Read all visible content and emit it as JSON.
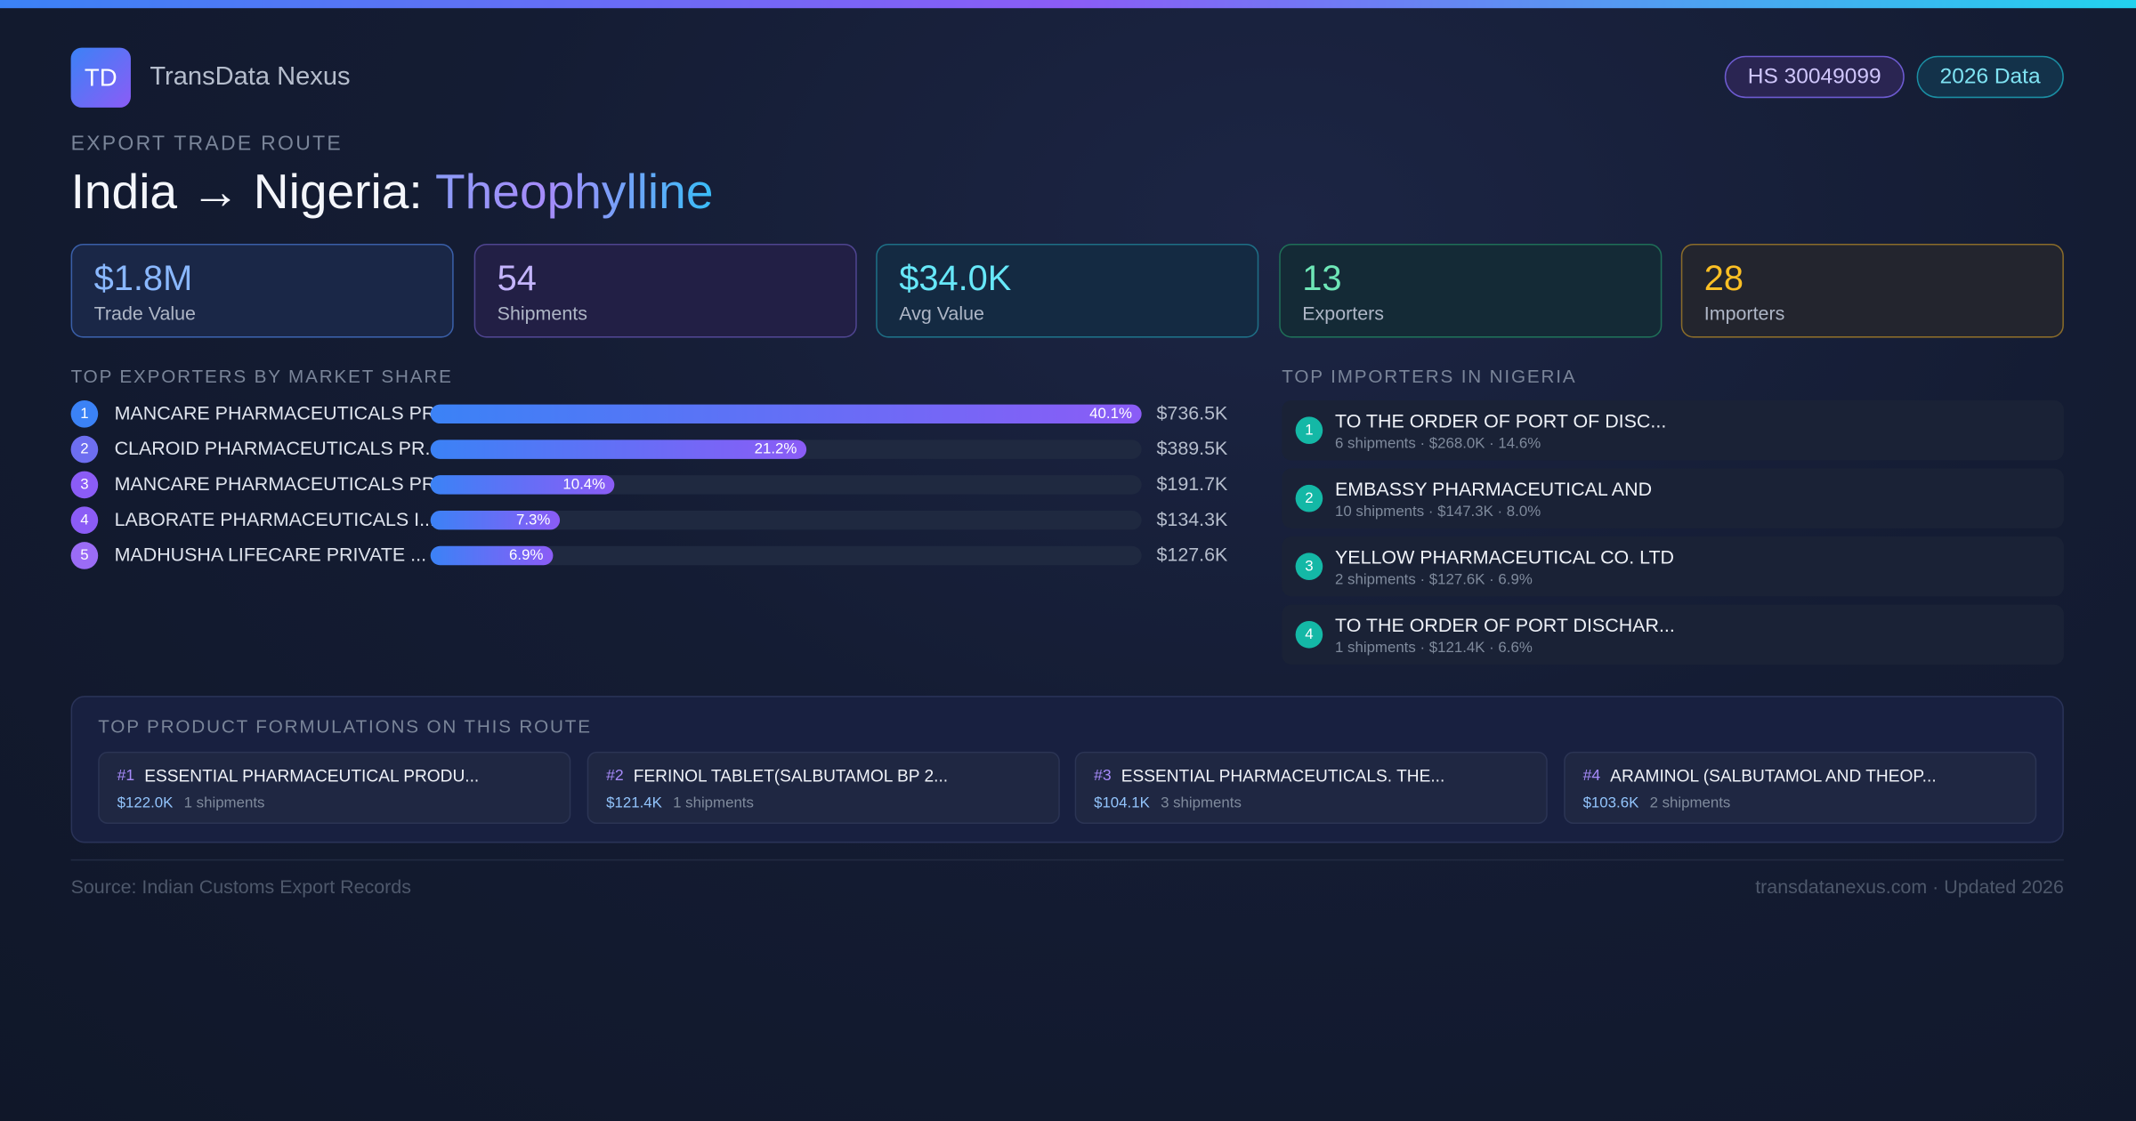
{
  "brand": {
    "logo": "TD",
    "name": "TransData Nexus"
  },
  "badges": [
    "HS 30049099",
    "2026 Data"
  ],
  "eyebrow": "EXPORT TRADE ROUTE",
  "title": {
    "route": "India → Nigeria:",
    "product": "Theophylline"
  },
  "stats": [
    {
      "value": "$1.8M",
      "label": "Trade Value"
    },
    {
      "value": "54",
      "label": "Shipments"
    },
    {
      "value": "$34.0K",
      "label": "Avg Value"
    },
    {
      "value": "13",
      "label": "Exporters"
    },
    {
      "value": "28",
      "label": "Importers"
    }
  ],
  "exporters": {
    "heading": "TOP EXPORTERS BY MARKET SHARE",
    "rows": [
      {
        "rank": 1,
        "name": "MANCARE PHARMACEUTICALS PR...",
        "share": 40.1,
        "share_label": "40.1%",
        "value": "$736.5K"
      },
      {
        "rank": 2,
        "name": "CLAROID PHARMACEUTICALS PR...",
        "share": 21.2,
        "share_label": "21.2%",
        "value": "$389.5K"
      },
      {
        "rank": 3,
        "name": "MANCARE PHARMACEUTICALS PR...",
        "share": 10.4,
        "share_label": "10.4%",
        "value": "$191.7K"
      },
      {
        "rank": 4,
        "name": "LABORATE PHARMACEUTICALS I...",
        "share": 7.3,
        "share_label": "7.3%",
        "value": "$134.3K"
      },
      {
        "rank": 5,
        "name": "MADHUSHA LIFECARE PRIVATE ...",
        "share": 6.9,
        "share_label": "6.9%",
        "value": "$127.6K"
      }
    ]
  },
  "importers": {
    "heading": "TOP IMPORTERS IN NIGERIA",
    "rows": [
      {
        "rank": 1,
        "name": "TO THE ORDER OF PORT OF DISC...",
        "detail": "6 shipments · $268.0K · 14.6%"
      },
      {
        "rank": 2,
        "name": "EMBASSY PHARMACEUTICAL AND",
        "detail": "10 shipments · $147.3K · 8.0%"
      },
      {
        "rank": 3,
        "name": "YELLOW PHARMACEUTICAL CO. LTD",
        "detail": "2 shipments · $127.6K · 6.9%"
      },
      {
        "rank": 4,
        "name": "TO THE ORDER OF PORT DISCHAR...",
        "detail": "1 shipments · $121.4K · 6.6%"
      }
    ]
  },
  "formulations": {
    "heading": "TOP PRODUCT FORMULATIONS ON THIS ROUTE",
    "items": [
      {
        "rank": "#1",
        "name": "ESSENTIAL PHARMACEUTICAL PRODU...",
        "value": "$122.0K",
        "shipments": "1 shipments"
      },
      {
        "rank": "#2",
        "name": "FERINOL TABLET(SALBUTAMOL  BP 2...",
        "value": "$121.4K",
        "shipments": "1 shipments"
      },
      {
        "rank": "#3",
        "name": "ESSENTIAL PHARMACEUTICALS. THE...",
        "value": "$104.1K",
        "shipments": "3 shipments"
      },
      {
        "rank": "#4",
        "name": "ARAMINOL (SALBUTAMOL AND THEOP...",
        "value": "$103.6K",
        "shipments": "2 shipments"
      }
    ]
  },
  "footer": {
    "source": "Source: Indian Customs Export Records",
    "site": "transdatanexus.com · Updated 2026"
  }
}
